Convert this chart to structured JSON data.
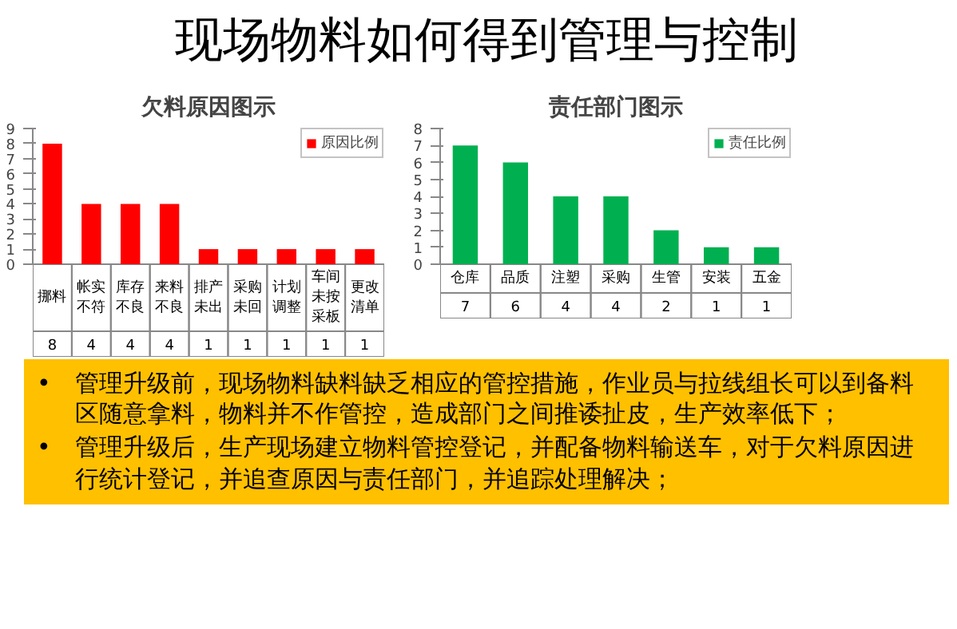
{
  "chart_data": [
    {
      "type": "other",
      "title": "现场物料如何得到管理与控制"
    },
    {
      "type": "bar",
      "title": "欠料原因图示",
      "categories": [
        "挪料",
        "帐实不符",
        "库存不良",
        "来料不良",
        "排产未出",
        "采购未回",
        "计划调整",
        "车间未按采板",
        "更改清单"
      ],
      "series": [
        {
          "name": "原因比例",
          "color": "#ff0000",
          "values": [
            8,
            4,
            4,
            4,
            1,
            1,
            1,
            1,
            1
          ]
        }
      ],
      "ylim": [
        0,
        9
      ],
      "yticks": [
        0,
        1,
        2,
        3,
        4,
        5,
        6,
        7,
        8,
        9
      ],
      "grid": false,
      "legend": "top right",
      "data_labels": true
    },
    {
      "type": "bar",
      "title": "责任部门图示",
      "categories": [
        "仓库",
        "品质",
        "注塑",
        "采购",
        "生管",
        "安装",
        "五金"
      ],
      "series": [
        {
          "name": "责任比例",
          "color": "#00b050",
          "values": [
            7,
            6,
            4,
            4,
            2,
            1,
            1
          ]
        }
      ],
      "ylim": [
        0,
        8
      ],
      "yticks": [
        0,
        1,
        2,
        3,
        4,
        5,
        6,
        7,
        8
      ],
      "grid": false,
      "legend": "top right",
      "data_labels": true
    },
    {
      "type": "other",
      "annotations": [
        "• 管理升级前，现场物料缺料缺乏相应的管控措施，作业员与拉线组长可以到备料区随意拿料，物料并不作管控，造成部门之间推诿扯皮，生产效率低下；",
        "• 管理升级后，生产现场建立物料管控登记，并配备物料输送车，对于欠料原因进行统计登记，并追查原因与责任部门，并追踪处理解决；"
      ]
    }
  ]
}
